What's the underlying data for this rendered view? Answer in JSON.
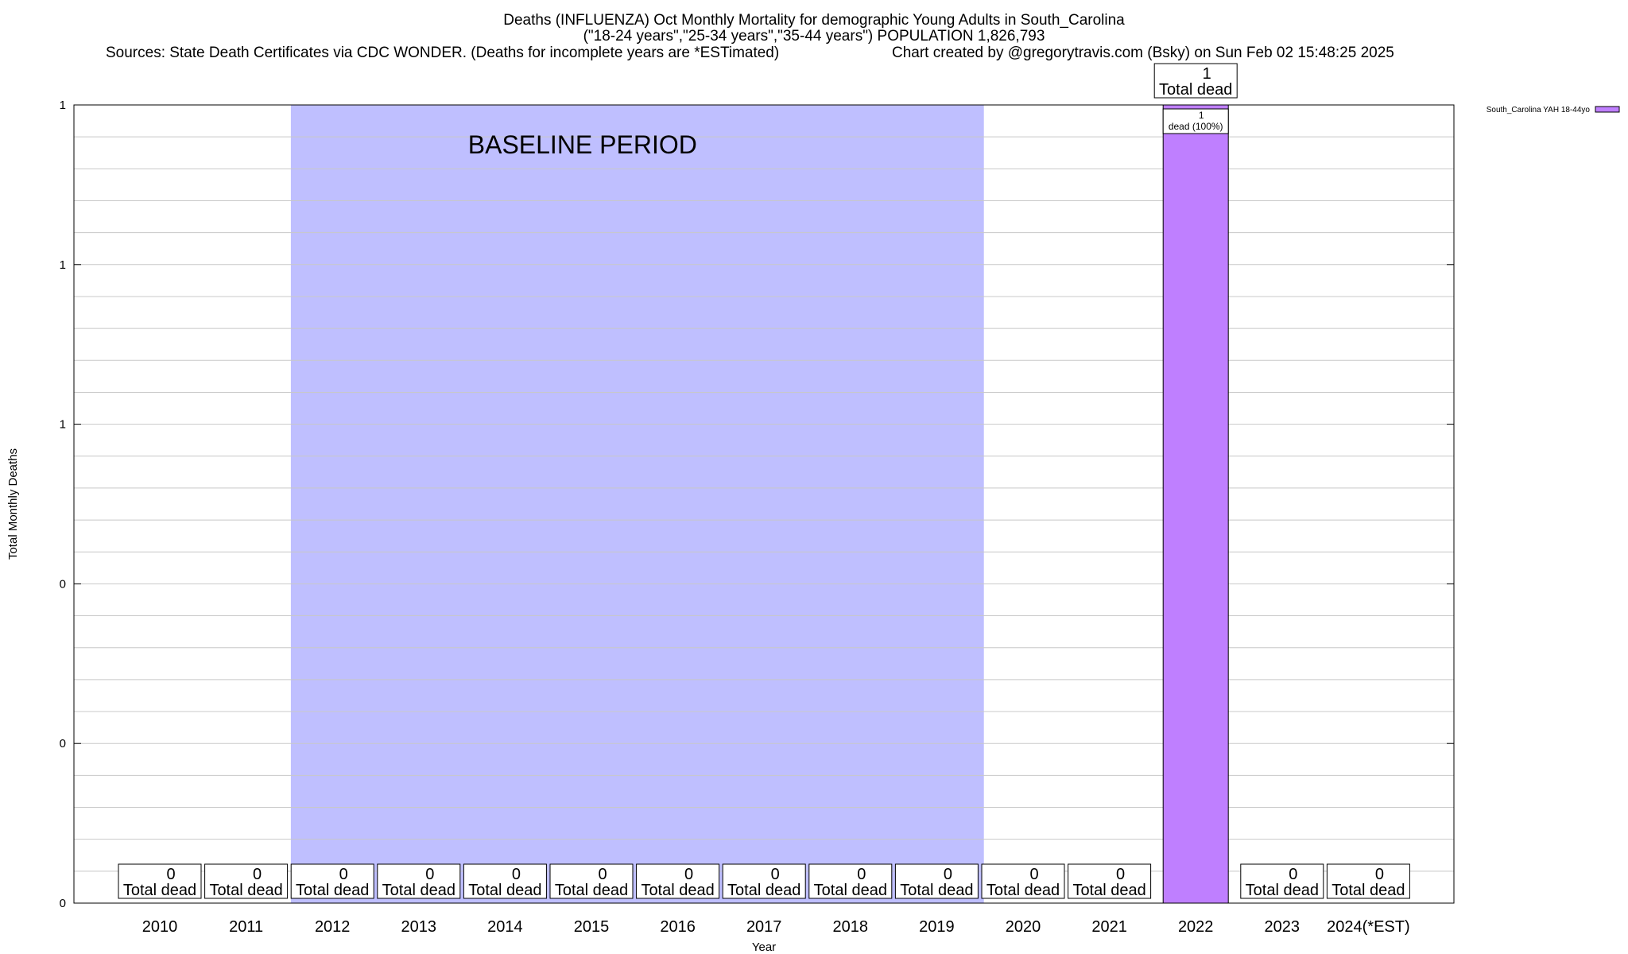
{
  "chart_data": {
    "type": "bar",
    "title": "Deaths (INFLUENZA) Oct Monthly Mortality for demographic Young Adults in South_Carolina",
    "subtitle": "(\"18-24 years\",\"25-34 years\",\"35-44 years\") POPULATION 1,826,793",
    "sources": "Sources: State Death Certificates via CDC WONDER. (Deaths for incomplete years are *ESTimated)",
    "credit": "Chart created by @gregorytravis.com (Bsky) on Sun Feb 02 15:48:25 2025",
    "xlabel": "Year",
    "ylabel": "Total Monthly Deaths",
    "ylim": [
      0,
      1
    ],
    "y_tick_labels": [
      "0",
      "0",
      "0",
      "1",
      "1",
      "1"
    ],
    "categories": [
      "2010",
      "2011",
      "2012",
      "2013",
      "2014",
      "2015",
      "2016",
      "2017",
      "2018",
      "2019",
      "2020",
      "2021",
      "2022",
      "2023",
      "2024(*EST)"
    ],
    "series": [
      {
        "name": "South_Carolina YAH 18-44yo",
        "color": "#bf7fff",
        "values": [
          0,
          0,
          0,
          0,
          0,
          0,
          0,
          0,
          0,
          0,
          0,
          0,
          1,
          0,
          0
        ]
      }
    ],
    "total_labels": [
      {
        "value": "0",
        "caption": "Total dead"
      },
      {
        "value": "0",
        "caption": "Total dead"
      },
      {
        "value": "0",
        "caption": "Total dead"
      },
      {
        "value": "0",
        "caption": "Total dead"
      },
      {
        "value": "0",
        "caption": "Total dead"
      },
      {
        "value": "0",
        "caption": "Total dead"
      },
      {
        "value": "0",
        "caption": "Total dead"
      },
      {
        "value": "0",
        "caption": "Total dead"
      },
      {
        "value": "0",
        "caption": "Total dead"
      },
      {
        "value": "0",
        "caption": "Total dead"
      },
      {
        "value": "0",
        "caption": "Total dead"
      },
      {
        "value": "0",
        "caption": "Total dead"
      },
      {
        "value": "1",
        "caption": "Total dead"
      },
      {
        "value": "0",
        "caption": "Total dead"
      },
      {
        "value": "0",
        "caption": "Total dead"
      }
    ],
    "segment_labels": [
      {
        "category": "2022",
        "count": "1",
        "caption": "dead (100%)"
      }
    ],
    "baseline": {
      "label": "BASELINE PERIOD",
      "start": "2012",
      "end": "2019",
      "color": "#bfbfff"
    },
    "grid": true,
    "legend_position": "top-right"
  }
}
